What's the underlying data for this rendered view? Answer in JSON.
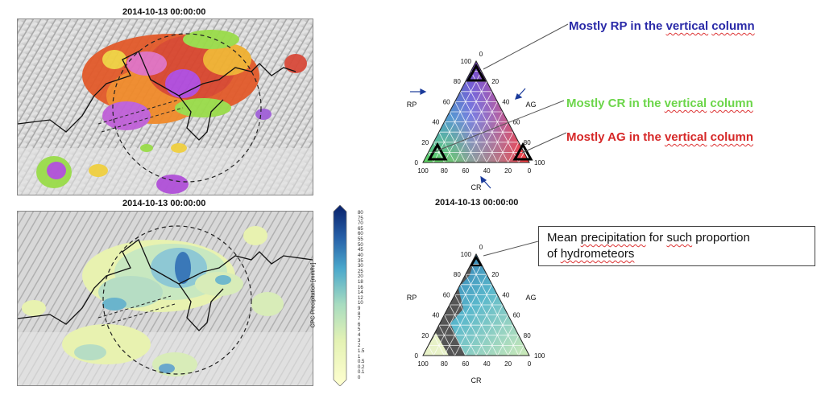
{
  "top_map": {
    "timestamp": "2014-10-13 00:00:00"
  },
  "bottom_map": {
    "timestamp": "2014-10-13 00:00:00"
  },
  "colorbar": {
    "label": "CPC Precipitation [mm/hr]",
    "ticks": [
      "0",
      "0.1",
      "0.2",
      "0.5",
      "1",
      "1.5",
      "2",
      "3",
      "4",
      "5",
      "6",
      "7",
      "8",
      "9",
      "10",
      "12",
      "14",
      "16",
      "18",
      "20",
      "25",
      "30",
      "35",
      "40",
      "45",
      "50",
      "55",
      "60",
      "65",
      "70",
      "75",
      "80"
    ]
  },
  "ternary_top": {
    "labels": {
      "rp": "RP",
      "ag": "AG",
      "cr": "CR"
    },
    "left_ticks": [
      "0",
      "20",
      "40",
      "60",
      "80",
      "100"
    ],
    "right_ticks": [
      "20",
      "40",
      "60",
      "80",
      "100"
    ],
    "bottom_ticks": [
      "100",
      "80",
      "60",
      "40",
      "20",
      "0"
    ],
    "apex_tick": "0"
  },
  "ternary_bottom": {
    "labels": {
      "rp": "RP",
      "ag": "AG",
      "cr": "CR"
    },
    "left_ticks": [
      "0",
      "20",
      "40",
      "60",
      "80",
      "100"
    ],
    "right_ticks": [
      "20",
      "40",
      "60",
      "80",
      "100"
    ],
    "bottom_ticks": [
      "100",
      "80",
      "60",
      "40",
      "20",
      "0"
    ],
    "apex_tick": "0"
  },
  "ternary_timestamp": "2014-10-13 00:00:00",
  "annotations": {
    "rp": {
      "prefix": "Mostly RP in the ",
      "u1": "vertical",
      "mid": " ",
      "u2": "column",
      "color": "#2a2aa8"
    },
    "cr": {
      "prefix": "Mostly CR in the ",
      "u1": "vertical",
      "mid": " ",
      "u2": "column",
      "color": "#6cd64a"
    },
    "ag": {
      "prefix": "Mostly AG in the ",
      "u1": "vertical",
      "mid": " ",
      "u2": "column",
      "color": "#d62828"
    }
  },
  "mean_box": {
    "l1a": "Mean ",
    "l1u": "precipitation",
    "l1b": " for ",
    "l1u2": "such",
    "l1c": " proportion",
    "l2a": "of ",
    "l2u": "hydrometeors"
  }
}
